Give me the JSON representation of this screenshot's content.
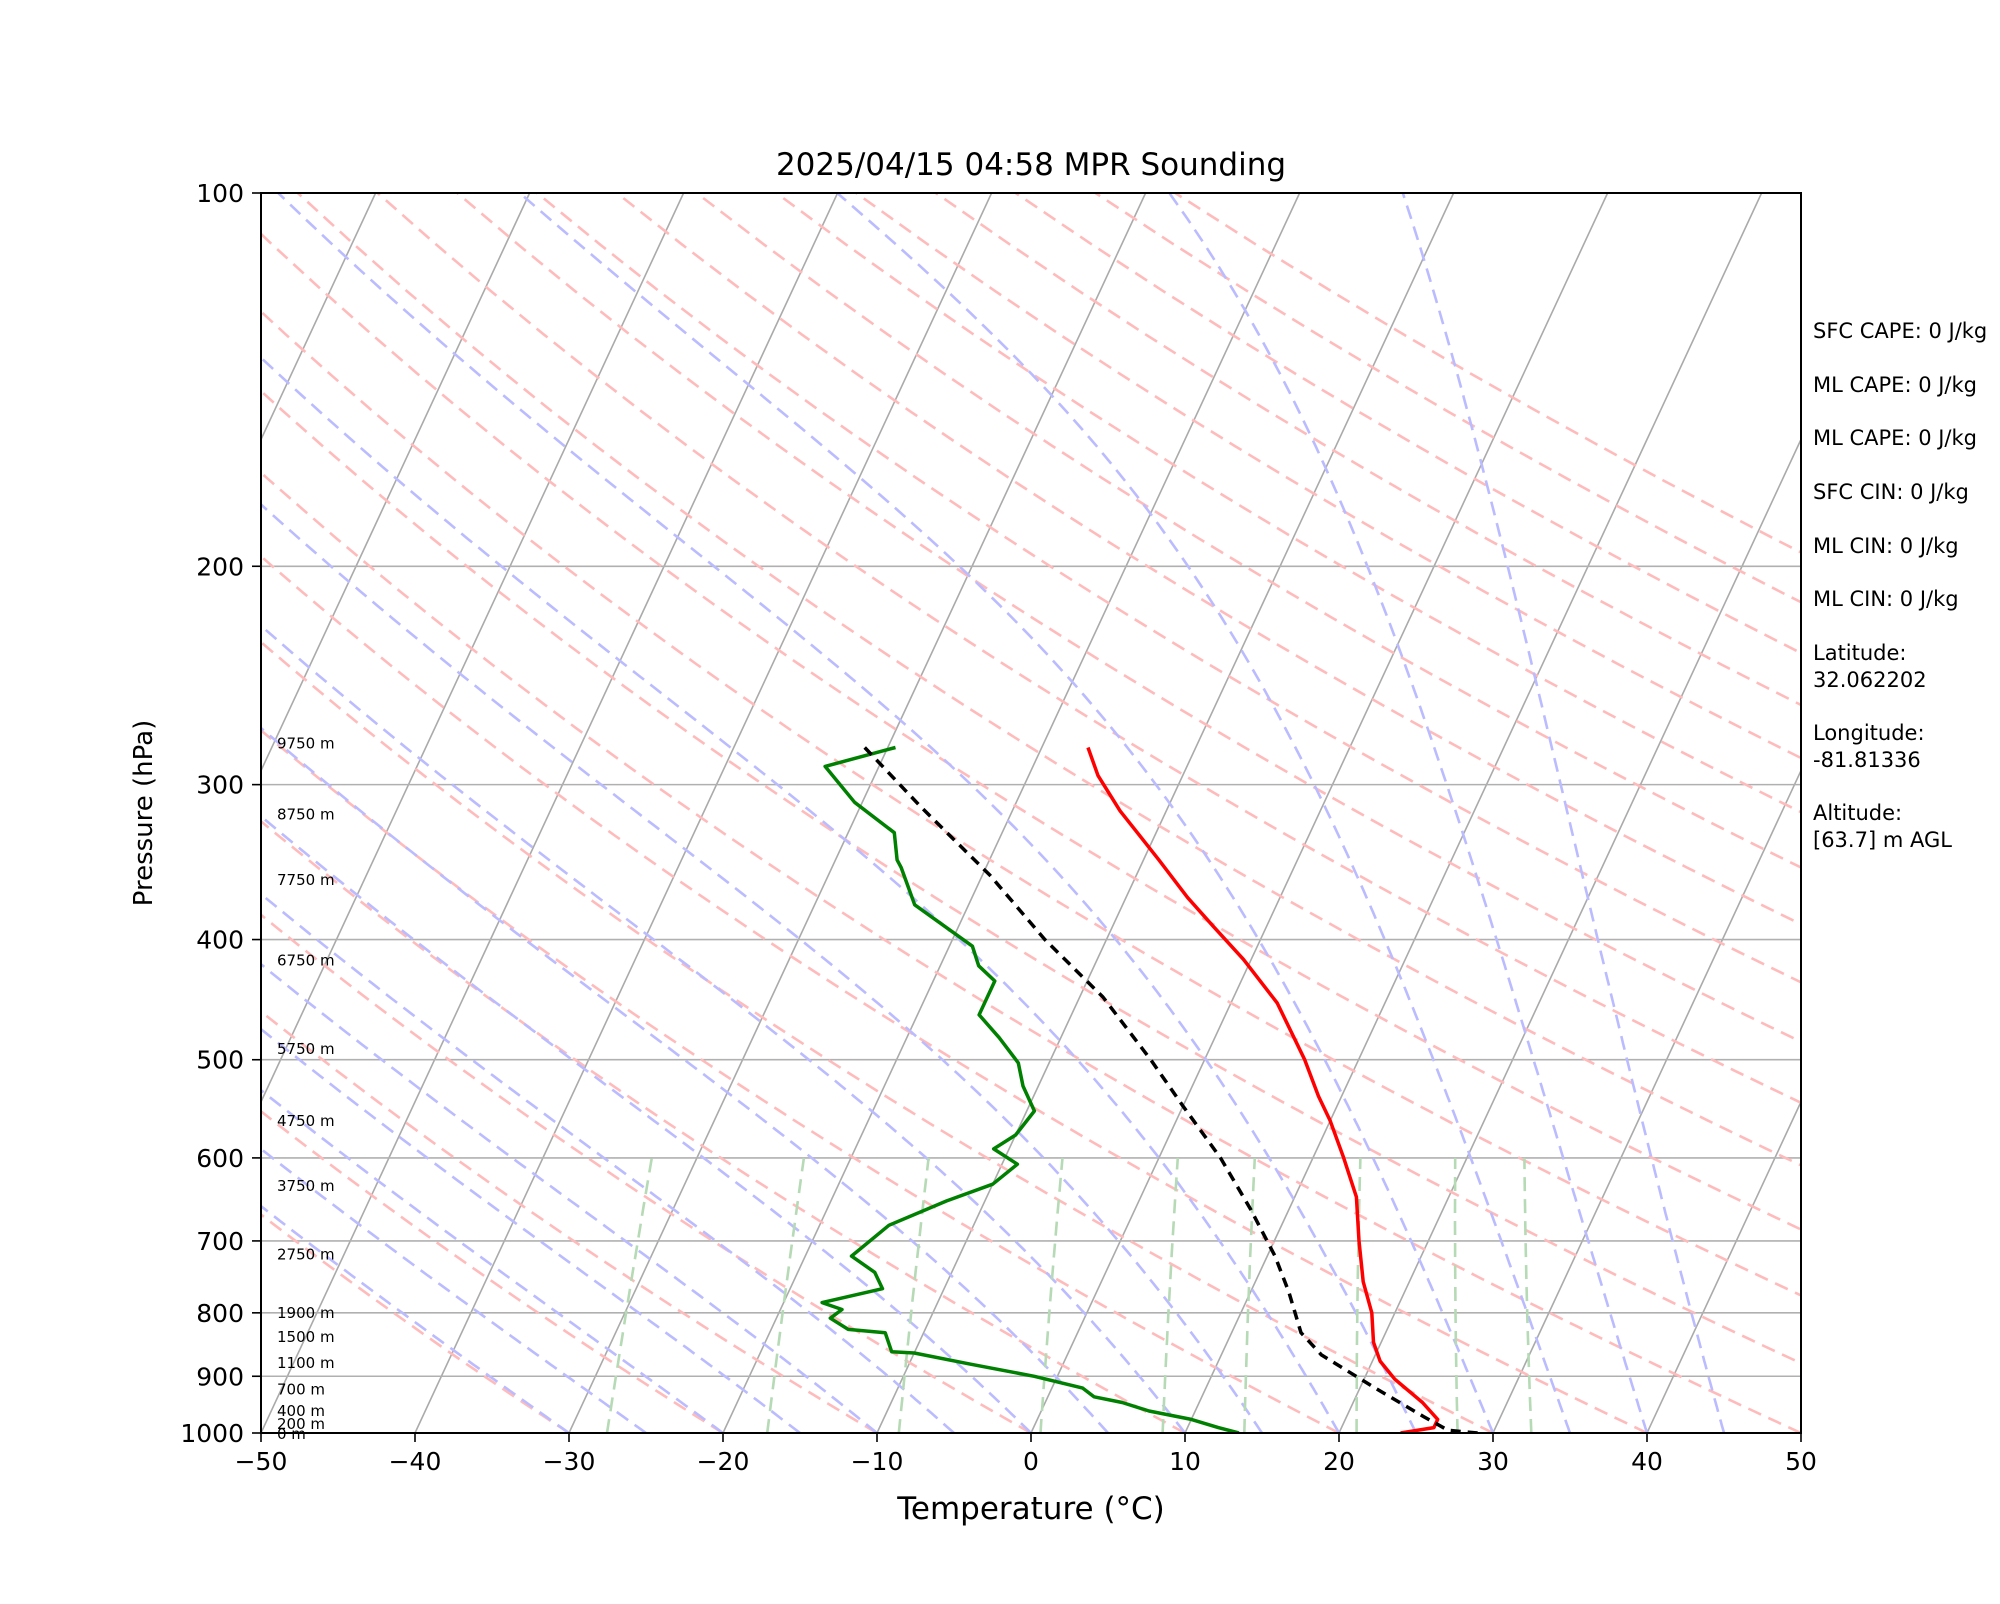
{
  "chart_data": {
    "type": "line",
    "title": "2025/04/15 04:58 MPR Sounding",
    "xlabel": "Temperature (°C)",
    "ylabel": "Pressure (hPa)",
    "xlim": [
      -50,
      50
    ],
    "ylim": [
      1000,
      100
    ],
    "y_scale": "log",
    "x_ticks": [
      -50,
      -40,
      -30,
      -20,
      -10,
      0,
      10,
      20,
      30,
      40,
      50
    ],
    "x_tick_labels": [
      "−50",
      "−40",
      "−30",
      "−20",
      "−10",
      "0",
      "10",
      "20",
      "30",
      "40",
      "50"
    ],
    "y_ticks": [
      100,
      200,
      300,
      400,
      500,
      600,
      700,
      800,
      900,
      1000
    ],
    "y_tick_labels": [
      "100",
      "200",
      "300",
      "400",
      "500",
      "600",
      "700",
      "800",
      "900",
      "1000"
    ],
    "grid": "isobars",
    "series": [
      {
        "color": "#ff0000",
        "style": "solid",
        "points": [
          [
            -17,
            280
          ],
          [
            -15.5,
            295
          ],
          [
            -13,
            315
          ],
          [
            -9,
            345
          ],
          [
            -6,
            370
          ],
          [
            -3.5,
            390
          ],
          [
            -0.5,
            415
          ],
          [
            3,
            450
          ],
          [
            6.5,
            500
          ],
          [
            8.5,
            535
          ],
          [
            10,
            560
          ],
          [
            12,
            600
          ],
          [
            14,
            645
          ],
          [
            15.5,
            700
          ],
          [
            17,
            755
          ],
          [
            18.5,
            800
          ],
          [
            19.5,
            845
          ],
          [
            20.5,
            875
          ],
          [
            22,
            905
          ],
          [
            24.5,
            945
          ],
          [
            26,
            975
          ],
          [
            26,
            990
          ],
          [
            24,
            1000
          ]
        ]
      },
      {
        "color": "#008000",
        "style": "solid",
        "points": [
          [
            -29.5,
            280
          ],
          [
            -33.5,
            290
          ],
          [
            -30.5,
            310
          ],
          [
            -27,
            328
          ],
          [
            -26,
            345
          ],
          [
            -25.5,
            350
          ],
          [
            -23.5,
            375
          ],
          [
            -18.5,
            405
          ],
          [
            -17.5,
            420
          ],
          [
            -16,
            432
          ],
          [
            -16,
            460
          ],
          [
            -14,
            480
          ],
          [
            -12,
            503
          ],
          [
            -11,
            525
          ],
          [
            -9.5,
            550
          ],
          [
            -10,
            575
          ],
          [
            -11,
            590
          ],
          [
            -9,
            607
          ],
          [
            -10,
            630
          ],
          [
            -12.5,
            650
          ],
          [
            -15.5,
            680
          ],
          [
            -17,
            720
          ],
          [
            -15,
            742
          ],
          [
            -14,
            765
          ],
          [
            -17.5,
            785
          ],
          [
            -16,
            795
          ],
          [
            -16.5,
            808
          ],
          [
            -15,
            825
          ],
          [
            -12.5,
            830
          ],
          [
            -11.5,
            860
          ],
          [
            -10,
            862
          ],
          [
            -6,
            880
          ],
          [
            -1.5,
            900
          ],
          [
            2,
            920
          ],
          [
            3,
            935
          ],
          [
            5,
            945
          ],
          [
            7,
            960
          ],
          [
            10,
            975
          ],
          [
            12,
            990
          ],
          [
            13.5,
            1000
          ]
        ]
      },
      {
        "color": "#000000",
        "style": "dashed",
        "points": [
          [
            -31.5,
            280
          ],
          [
            -26,
            313
          ],
          [
            -19.5,
            355
          ],
          [
            -14,
            400
          ],
          [
            -8.5,
            445
          ],
          [
            -3.5,
            500
          ],
          [
            0,
            545
          ],
          [
            4,
            600
          ],
          [
            7.5,
            660
          ],
          [
            10.5,
            720
          ],
          [
            12.5,
            770
          ],
          [
            14.5,
            830
          ],
          [
            16.5,
            865
          ],
          [
            21,
            920
          ],
          [
            25,
            970
          ],
          [
            27,
            995
          ],
          [
            29,
            1000
          ]
        ]
      }
    ],
    "height_labels": [
      {
        "text": "9750 m",
        "p": 278
      },
      {
        "text": "8750 m",
        "p": 317
      },
      {
        "text": "7750 m",
        "p": 358
      },
      {
        "text": "6750 m",
        "p": 416
      },
      {
        "text": "5750 m",
        "p": 490
      },
      {
        "text": "4750 m",
        "p": 560
      },
      {
        "text": "3750 m",
        "p": 632
      },
      {
        "text": "2750 m",
        "p": 718
      },
      {
        "text": "1900 m",
        "p": 800
      },
      {
        "text": "1500 m",
        "p": 837
      },
      {
        "text": "1100 m",
        "p": 878
      },
      {
        "text": "700 m",
        "p": 922
      },
      {
        "text": "400 m",
        "p": 960
      },
      {
        "text": "200 m",
        "p": 983
      },
      {
        "text": "0 m",
        "p": 1002
      }
    ],
    "info_lines": [
      "SFC CAPE: 0 J/kg",
      "ML CAPE: 0 J/kg",
      "ML CAPE: 0 J/kg",
      "SFC CIN: 0 J/kg",
      "ML CIN: 0 J/kg",
      "ML CIN: 0 J/kg",
      "Latitude:",
      "32.062202",
      "Longitude:",
      "-81.81336",
      "Altitude:",
      "[63.7] m AGL"
    ],
    "background_colors": {
      "isotherm": "#aaaaaa",
      "isobar": "#b0b0b0",
      "dry_adiabat": "#ffbbbb",
      "moist_adiabat": "#bbbbff",
      "mixing_ratio": "#b5dab5"
    }
  }
}
